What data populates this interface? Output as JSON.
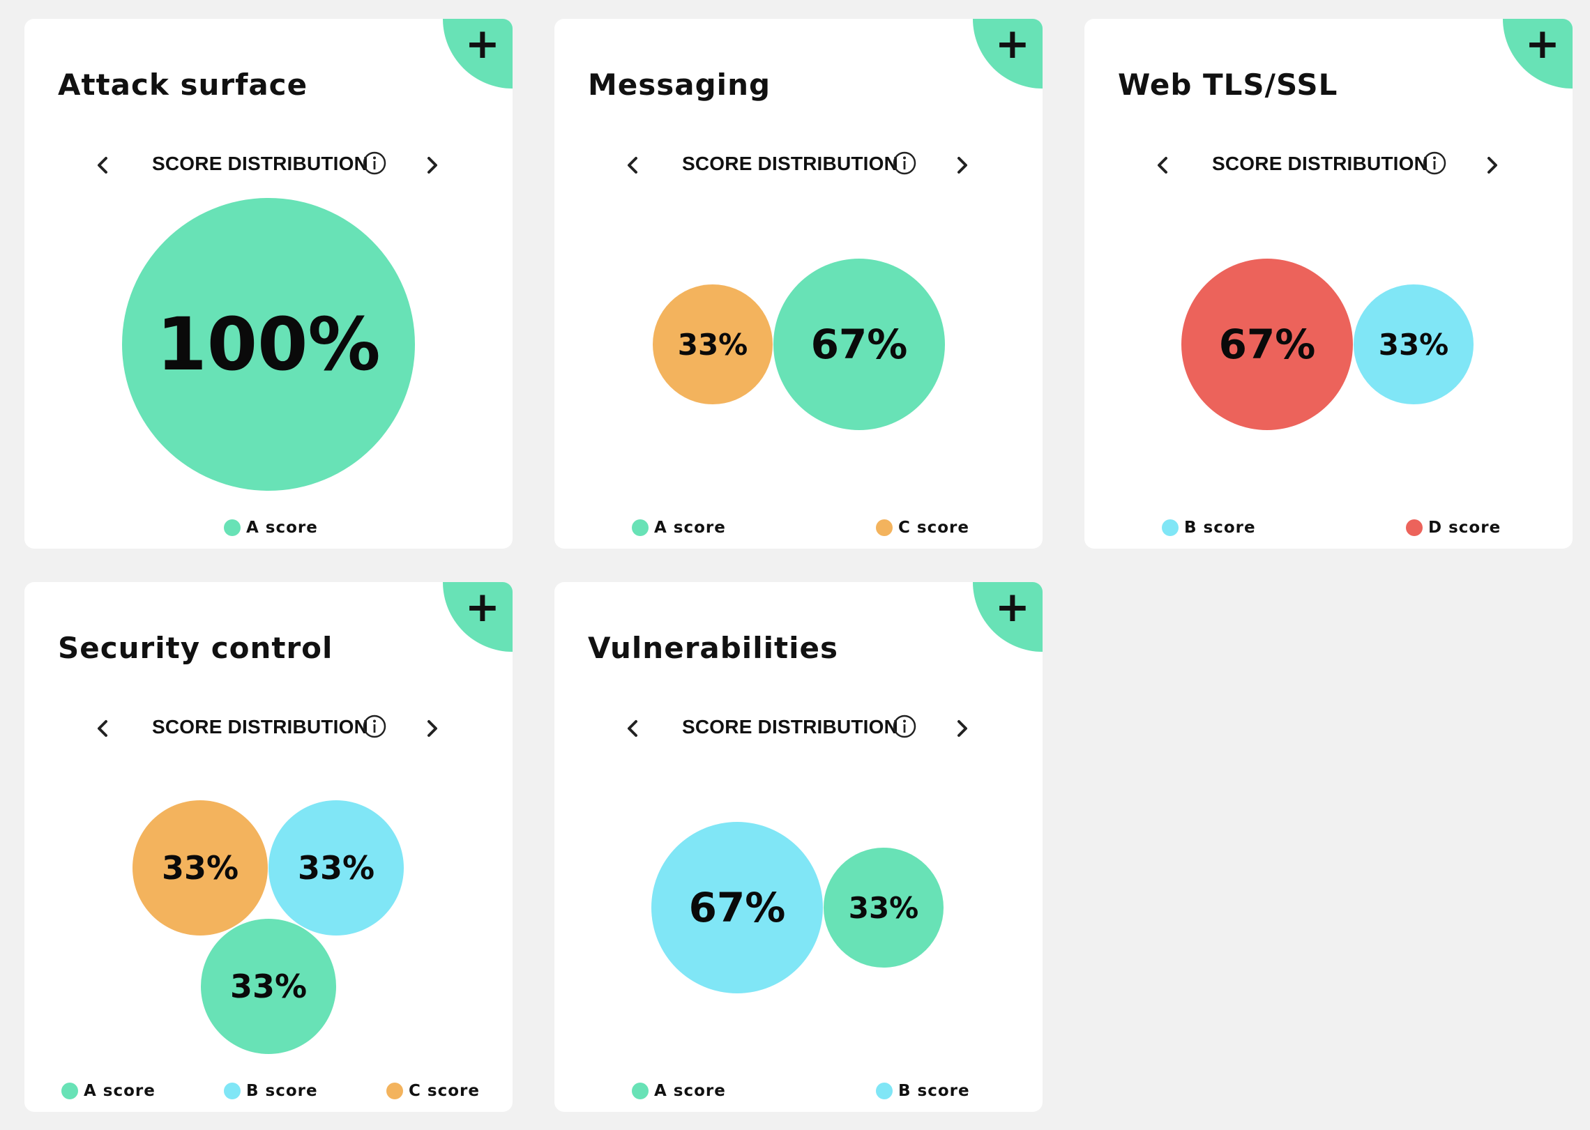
{
  "colors": {
    "A": "#68e2b6",
    "B": "#80e6f6",
    "C": "#f3b35d",
    "D": "#ec635b",
    "corner_accent": "#68e2b6"
  },
  "nav": {
    "label": "SCORE DISTRIBUTION",
    "prev_icon": "chevron-left-icon",
    "next_icon": "chevron-right-icon",
    "info_icon": "info-icon",
    "add_icon": "plus-icon"
  },
  "cards": [
    {
      "title": "Attack surface",
      "bubbles": [
        {
          "grade": "A",
          "label": "100%"
        }
      ],
      "legend": [
        {
          "grade": "A",
          "label": "A score"
        }
      ]
    },
    {
      "title": "Messaging",
      "bubbles": [
        {
          "grade": "C",
          "label": "33%"
        },
        {
          "grade": "A",
          "label": "67%"
        }
      ],
      "legend": [
        {
          "grade": "A",
          "label": "A score"
        },
        {
          "grade": "C",
          "label": "C score"
        }
      ]
    },
    {
      "title": "Web TLS/SSL",
      "bubbles": [
        {
          "grade": "D",
          "label": "67%"
        },
        {
          "grade": "B",
          "label": "33%"
        }
      ],
      "legend": [
        {
          "grade": "B",
          "label": "B score"
        },
        {
          "grade": "D",
          "label": "D score"
        }
      ]
    },
    {
      "title": "Security control",
      "bubbles": [
        {
          "grade": "C",
          "label": "33%"
        },
        {
          "grade": "B",
          "label": "33%"
        },
        {
          "grade": "A",
          "label": "33%"
        }
      ],
      "legend": [
        {
          "grade": "A",
          "label": "A score"
        },
        {
          "grade": "B",
          "label": "B score"
        },
        {
          "grade": "C",
          "label": "C score"
        }
      ]
    },
    {
      "title": "Vulnerabilities",
      "bubbles": [
        {
          "grade": "B",
          "label": "67%"
        },
        {
          "grade": "A",
          "label": "33%"
        }
      ],
      "legend": [
        {
          "grade": "A",
          "label": "A score"
        },
        {
          "grade": "B",
          "label": "B score"
        }
      ]
    }
  ]
}
